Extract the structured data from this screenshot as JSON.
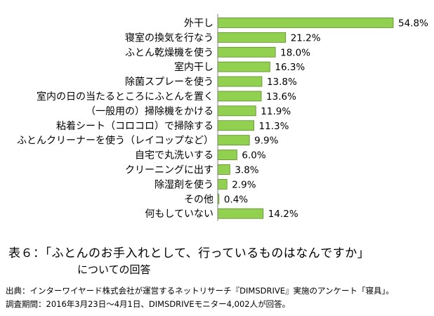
{
  "chart_data": {
    "type": "bar",
    "orientation": "horizontal",
    "categories": [
      "外干し",
      "寝室の換気を行なう",
      "ふとん乾燥機を使う",
      "室内干し",
      "除菌スプレーを使う",
      "室内の日の当たるところにふとんを置く",
      "（一般用の）掃除機をかける",
      "粘着シート（コロコロ）で掃除する",
      "ふとんクリーナーを使う（レイコップなど）",
      "自宅で丸洗いする",
      "クリーニングに出す",
      "除湿剤を使う",
      "その他",
      "何もしていない"
    ],
    "values": [
      54.8,
      21.2,
      18.0,
      16.3,
      13.8,
      13.6,
      11.9,
      11.3,
      9.9,
      6.0,
      3.8,
      2.9,
      0.4,
      14.2
    ],
    "value_labels": [
      "54.8%",
      "21.2%",
      "18.0%",
      "16.3%",
      "13.8%",
      "13.6%",
      "11.9%",
      "11.3%",
      "9.9%",
      "6.0%",
      "3.8%",
      "2.9%",
      "0.4%",
      "14.2%"
    ],
    "xlim": [
      0,
      54.8
    ],
    "bar_color": "#92d050",
    "bar_edge_color": "#5a8a2a",
    "axis_color": "#808080",
    "grid": false,
    "legend": "none"
  },
  "caption": {
    "title": "表６：「ふとんのお手入れとして、行っているものはなんですか」",
    "subtitle": "についての回答",
    "source": "出典：インターワイヤード株式会社が運営するネットリサーチ『DIMSDRIVE』実施のアンケート「寝具」。",
    "period": "調査期間：2016年3月23日～4月1日、DIMSDRIVEモニター4,002人が回答。"
  }
}
